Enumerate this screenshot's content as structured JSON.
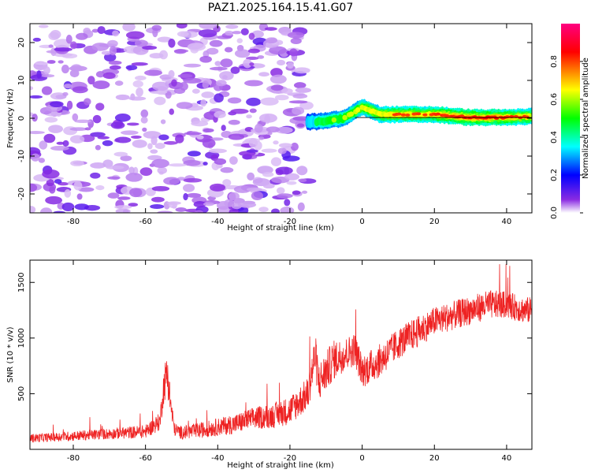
{
  "title": "PAZ1.2025.164.15.41.G07",
  "chart_data": [
    {
      "type": "heatmap",
      "xlabel": "Height of straight line (km)",
      "ylabel": "Frequency (Hz)",
      "xlim": [
        -92,
        47
      ],
      "ylim": [
        -25,
        25
      ],
      "xticks": [
        "-80",
        "-60",
        "-40",
        "-20",
        "0",
        "20",
        "40"
      ],
      "yticks": [
        "-20",
        "-10",
        "0",
        "10",
        "20"
      ],
      "colorbar": {
        "label": "Normalized spectral amplitude",
        "range": [
          0,
          1
        ],
        "ticks": [
          "0.0",
          "0.2",
          "0.4",
          "0.6",
          "0.8"
        ],
        "colormap": [
          "#ffffff",
          "#8a2be2",
          "#0000ff",
          "#00ffff",
          "#00ff00",
          "#ffff00",
          "#ff0000",
          "#ff0080"
        ]
      },
      "noise_region_x": [
        -92,
        -15
      ],
      "noise_amplitude": 0.1,
      "signal_track": [
        {
          "x": -15,
          "freq": -1.0,
          "amp": 0.35
        },
        {
          "x": -10,
          "freq": -0.7,
          "amp": 0.55
        },
        {
          "x": -5,
          "freq": 0.0,
          "amp": 0.6
        },
        {
          "x": 0,
          "freq": 3.0,
          "amp": 0.7
        },
        {
          "x": 5,
          "freq": 1.0,
          "amp": 0.75
        },
        {
          "x": 10,
          "freq": 1.0,
          "amp": 0.8
        },
        {
          "x": 20,
          "freq": 1.0,
          "amp": 0.8
        },
        {
          "x": 30,
          "freq": 0.2,
          "amp": 0.95
        },
        {
          "x": 40,
          "freq": 0.2,
          "amp": 0.85
        },
        {
          "x": 47,
          "freq": 0.5,
          "amp": 0.75
        }
      ]
    },
    {
      "type": "line",
      "xlabel": "Height of straight line (km)",
      "ylabel": "SNR (10 * v/v)",
      "xlim": [
        -92,
        47
      ],
      "ylim": [
        0,
        1700
      ],
      "xticks": [
        "-80",
        "-60",
        "-40",
        "-20",
        "0",
        "20",
        "40"
      ],
      "yticks": [
        "500",
        "1000",
        "1500"
      ],
      "grid": false,
      "series": [
        {
          "color": "#ee2222",
          "x": [
            -92,
            -85,
            -80,
            -70,
            -60,
            -56,
            -55,
            -54,
            -53,
            -52,
            -50,
            -45,
            -40,
            -35,
            -30,
            -25,
            -20,
            -15,
            -13,
            -12,
            -10,
            -8,
            -5,
            -2,
            0,
            5,
            10,
            15,
            20,
            25,
            30,
            35,
            40,
            45,
            47
          ],
          "y": [
            100,
            110,
            120,
            140,
            160,
            250,
            550,
            700,
            400,
            180,
            150,
            170,
            200,
            230,
            280,
            300,
            350,
            500,
            850,
            600,
            700,
            800,
            850,
            900,
            700,
            800,
            950,
            1050,
            1150,
            1200,
            1250,
            1300,
            1300,
            1250,
            1250
          ],
          "noise_amplitude": [
            40,
            40,
            45,
            50,
            60,
            80,
            150,
            200,
            120,
            60,
            60,
            70,
            80,
            90,
            100,
            110,
            130,
            150,
            200,
            180,
            180,
            180,
            150,
            150,
            150,
            150,
            140,
            140,
            130,
            130,
            130,
            130,
            120,
            120,
            120
          ]
        }
      ]
    }
  ]
}
